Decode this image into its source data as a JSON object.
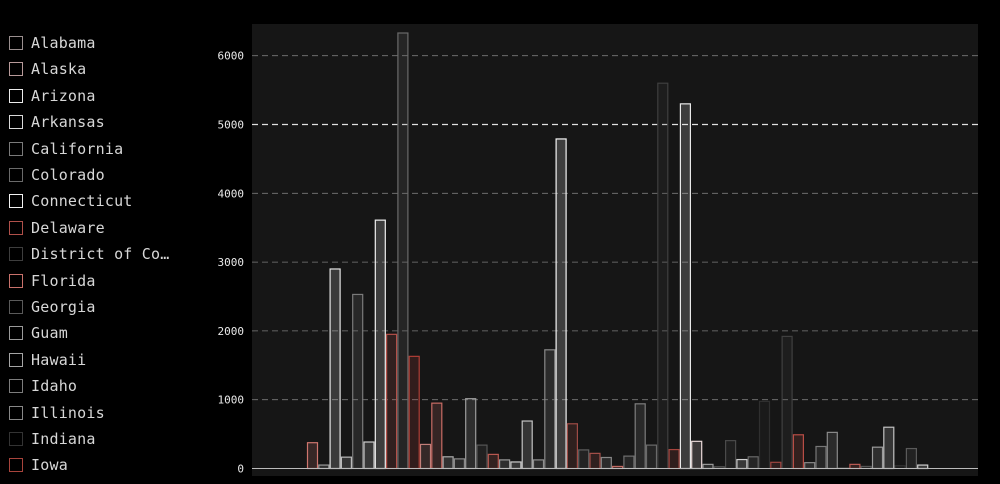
{
  "colors": {
    "background": "#000000",
    "plot_background": "#161616",
    "legend_text": "#d7d7d7",
    "grid": "#7a7a7a",
    "grid_highlight": "#e0e0e0",
    "axis": "#bbbbbb"
  },
  "legend": {
    "items": [
      {
        "label": "Alabama",
        "color": "#9a8f8f"
      },
      {
        "label": "Alaska",
        "color": "#b89a9a"
      },
      {
        "label": "Arizona",
        "color": "#ececec"
      },
      {
        "label": "Arkansas",
        "color": "#d9d9d9"
      },
      {
        "label": "California",
        "color": "#7a7a7a"
      },
      {
        "label": "Colorado",
        "color": "#6a6a6a"
      },
      {
        "label": "Connecticut",
        "color": "#f2f2f2"
      },
      {
        "label": "Delaware",
        "color": "#b0504a"
      },
      {
        "label": "District of Co…",
        "color": "#3e3e3e"
      },
      {
        "label": "Florida",
        "color": "#c9726c"
      },
      {
        "label": "Georgia",
        "color": "#5a5a5a"
      },
      {
        "label": "Guam",
        "color": "#9a9a9a"
      },
      {
        "label": "Hawaii",
        "color": "#a5a5a5"
      },
      {
        "label": "Idaho",
        "color": "#7d7d7d"
      },
      {
        "label": "Illinois",
        "color": "#888888"
      },
      {
        "label": "Indiana",
        "color": "#333333"
      },
      {
        "label": "Iowa",
        "color": "#a8443c"
      }
    ]
  },
  "chart_data": {
    "type": "bar",
    "ylim": [
      0,
      6500
    ],
    "yticks": [
      "0",
      "1000",
      "2000",
      "3000",
      "4000",
      "5000",
      "6000"
    ],
    "highlight_tick": "5000",
    "grid": true,
    "legend_position": "left",
    "bars": [
      {
        "value": 375,
        "color": "#cf756e"
      },
      {
        "value": 50,
        "color": "#9a9a9a"
      },
      {
        "value": 2900,
        "color": "#e4e4e4"
      },
      {
        "value": 165,
        "color": "#bbbbbb"
      },
      {
        "value": 2530,
        "color": "#7a7a7a"
      },
      {
        "value": 385,
        "color": "#cccccc"
      },
      {
        "value": 3610,
        "color": "#f0f0f0"
      },
      {
        "value": 1950,
        "color": "#b35049"
      },
      {
        "value": 6330,
        "color": "#6a6a6a"
      },
      {
        "value": 1630,
        "color": "#b03e36"
      },
      {
        "value": 350,
        "color": "#c27e78"
      },
      {
        "value": 950,
        "color": "#c86c64"
      },
      {
        "value": 170,
        "color": "#aaaaaa"
      },
      {
        "value": 140,
        "color": "#8a8a8a"
      },
      {
        "value": 1015,
        "color": "#9c9c9c"
      },
      {
        "value": 340,
        "color": "#555555"
      },
      {
        "value": 205,
        "color": "#ba5850"
      },
      {
        "value": 125,
        "color": "#9a9a9a"
      },
      {
        "value": 95,
        "color": "#cccccc"
      },
      {
        "value": 690,
        "color": "#c4c4c4"
      },
      {
        "value": 125,
        "color": "#8f8f8f"
      },
      {
        "value": 1725,
        "color": "#8a8a8a"
      },
      {
        "value": 4790,
        "color": "#f4f4f4"
      },
      {
        "value": 650,
        "color": "#9e4b45"
      },
      {
        "value": 270,
        "color": "#5f5f5f"
      },
      {
        "value": 220,
        "color": "#a7504a"
      },
      {
        "value": 160,
        "color": "#888888"
      },
      {
        "value": 30,
        "color": "#c26a63"
      },
      {
        "value": 180,
        "color": "#6f6f6f"
      },
      {
        "value": 940,
        "color": "#7e7e7e"
      },
      {
        "value": 340,
        "color": "#6a6a6a"
      },
      {
        "value": 5600,
        "color": "#3f3f3f"
      },
      {
        "value": 275,
        "color": "#a6453e"
      },
      {
        "value": 5300,
        "color": "#e8e8e8"
      },
      {
        "value": 395,
        "color": "#e9d9d8"
      },
      {
        "value": 60,
        "color": "#9a9a9a"
      },
      {
        "value": 25,
        "color": "#555555"
      },
      {
        "value": 405,
        "color": "#4a4a4a"
      },
      {
        "value": 130,
        "color": "#d0d0d0"
      },
      {
        "value": 170,
        "color": "#6a6a6a"
      },
      {
        "value": 975,
        "color": "#2f2f2f"
      },
      {
        "value": 90,
        "color": "#a04540"
      },
      {
        "value": 1920,
        "color": "#404040"
      },
      {
        "value": 490,
        "color": "#b84d45"
      },
      {
        "value": 85,
        "color": "#888888"
      },
      {
        "value": 320,
        "color": "#777777"
      },
      {
        "value": 525,
        "color": "#8a8a8a"
      },
      {
        "value": 5,
        "color": "#555555"
      },
      {
        "value": 60,
        "color": "#bd5b54"
      },
      {
        "value": 30,
        "color": "#555555"
      },
      {
        "value": 310,
        "color": "#9a9a9a"
      },
      {
        "value": 600,
        "color": "#c2c2c2"
      },
      {
        "value": 40,
        "color": "#333333"
      },
      {
        "value": 290,
        "color": "#5a5a5a"
      },
      {
        "value": 50,
        "color": "#d0d0d0"
      }
    ]
  }
}
